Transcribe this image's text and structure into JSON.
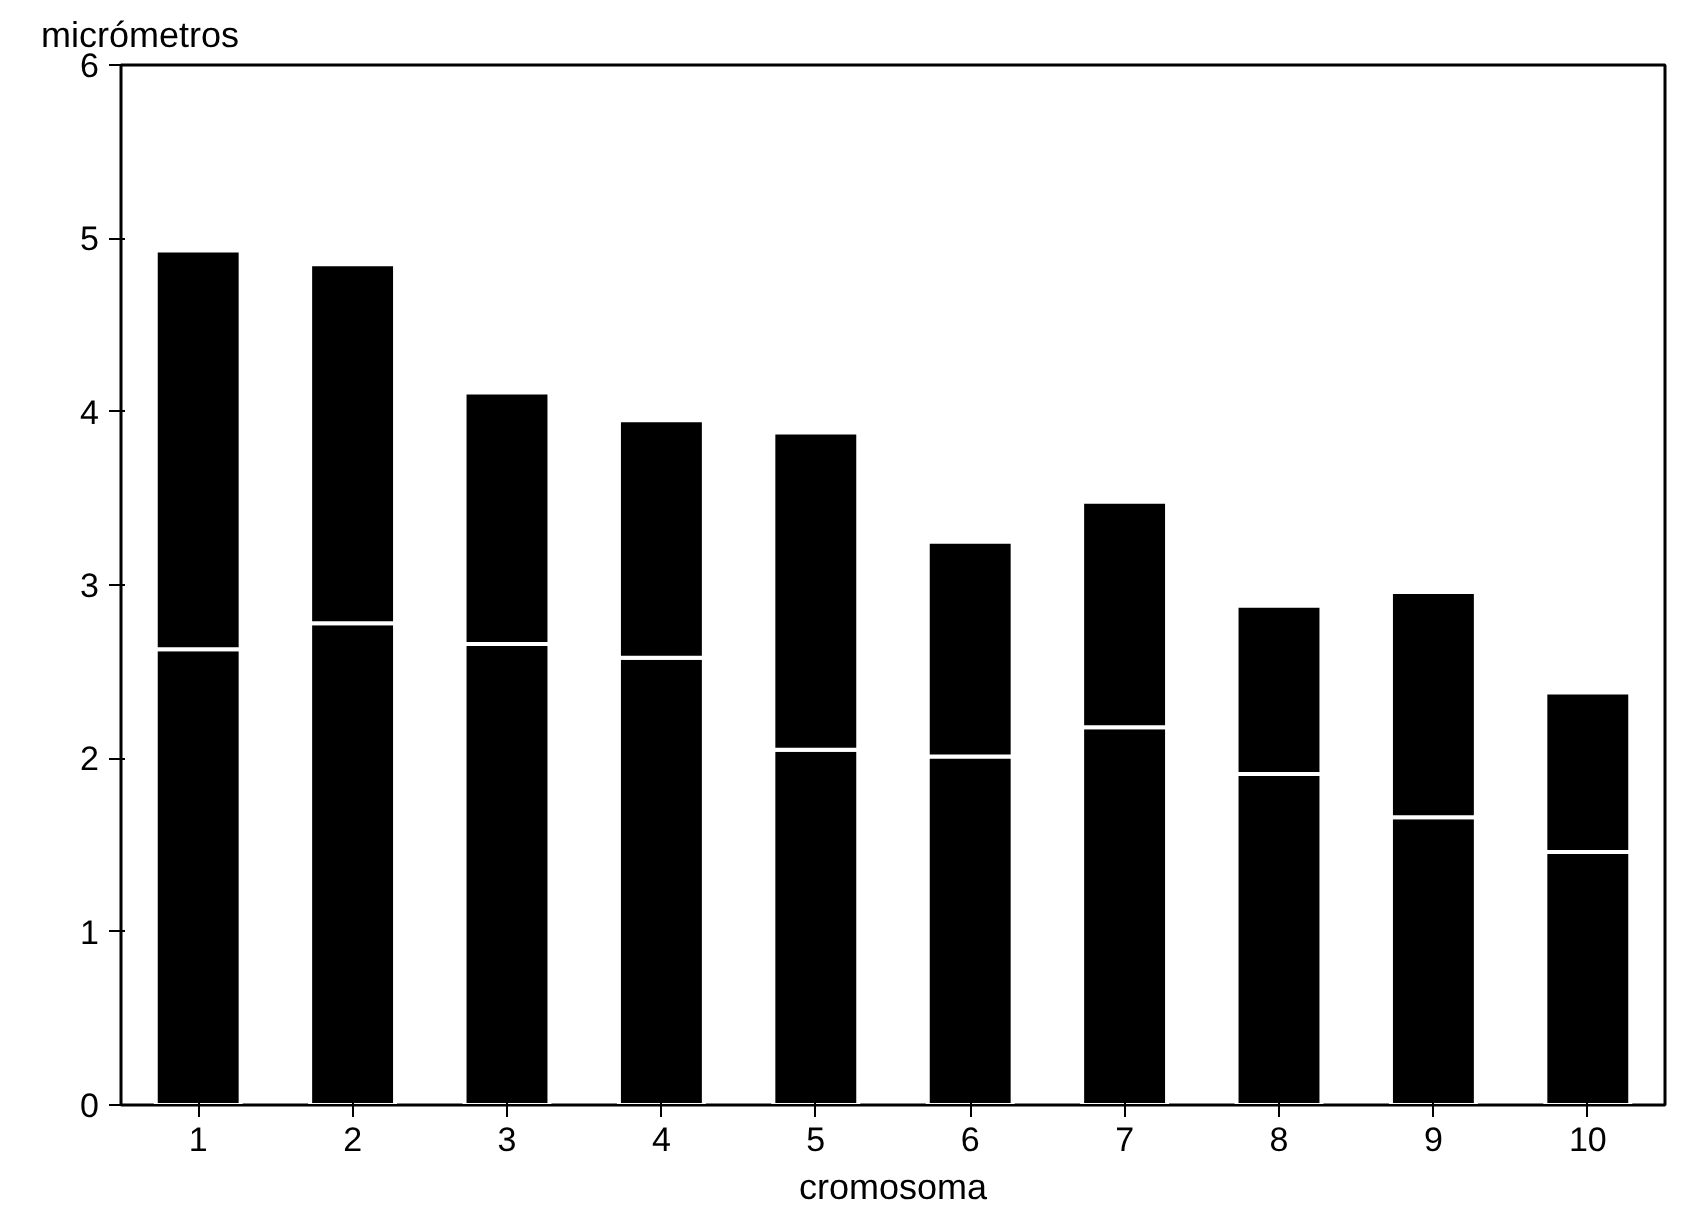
{
  "chart_data": {
    "type": "bar",
    "stacked": true,
    "xlabel": "cromosoma",
    "ylabel": "micrómetros",
    "categories": [
      "1",
      "2",
      "3",
      "4",
      "5",
      "6",
      "7",
      "8",
      "9",
      "10"
    ],
    "series": [
      {
        "color": "#000000",
        "values": [
          2.63,
          2.78,
          2.66,
          2.58,
          2.05,
          2.01,
          2.18,
          1.91,
          1.66,
          1.46
        ]
      },
      {
        "color": "#000000",
        "values": [
          2.3,
          2.07,
          1.45,
          1.37,
          1.83,
          1.24,
          1.3,
          0.97,
          1.3,
          0.92
        ]
      }
    ],
    "ylim": [
      0,
      6
    ],
    "yticks": [
      0,
      1,
      2,
      3,
      4,
      5,
      6
    ],
    "grid": false
  }
}
